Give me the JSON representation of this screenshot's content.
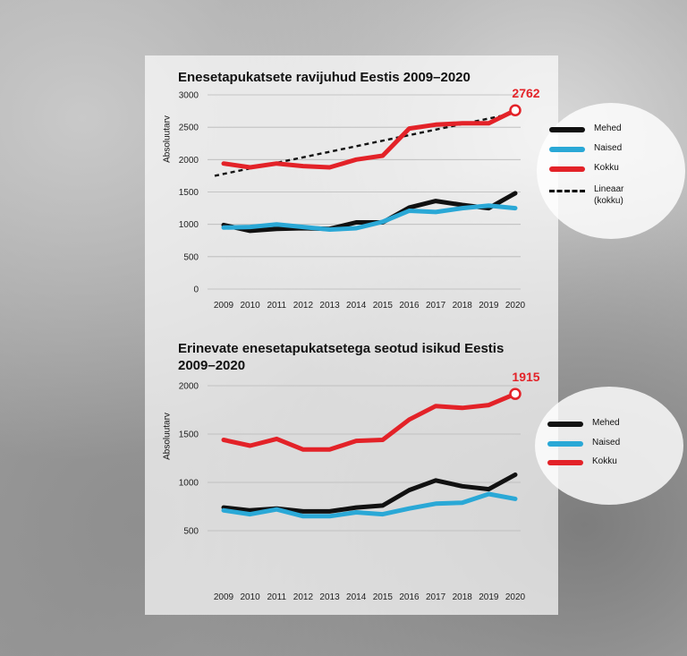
{
  "chart_data": [
    {
      "type": "line",
      "title": "Enesetapukatsete ravijuhud Eestis 2009–2020",
      "ylabel": "Absoluutarv",
      "ylim": [
        0,
        3000
      ],
      "yticks": [
        0,
        500,
        1000,
        1500,
        2000,
        2500,
        3000
      ],
      "categories": [
        "2009",
        "2010",
        "2011",
        "2012",
        "2013",
        "2014",
        "2015",
        "2016",
        "2017",
        "2018",
        "2019",
        "2020"
      ],
      "series": [
        {
          "name": "Mehed",
          "color": "#111111",
          "values": [
            990,
            900,
            930,
            940,
            930,
            1030,
            1030,
            1260,
            1360,
            1300,
            1250,
            1480
          ]
        },
        {
          "name": "Naised",
          "color": "#2aa8d6",
          "values": [
            950,
            960,
            1000,
            960,
            920,
            940,
            1040,
            1210,
            1190,
            1250,
            1290,
            1250
          ]
        },
        {
          "name": "Kokku",
          "color": "#e32228",
          "values": [
            1940,
            1880,
            1940,
            1900,
            1880,
            2000,
            2060,
            2480,
            2540,
            2560,
            2560,
            2762
          ]
        }
      ],
      "trendline": {
        "name": "Lineaar (kokku)",
        "color": "#111111",
        "start": 1750,
        "end": 2720
      },
      "end_label": "2762",
      "legend_position": "right",
      "grid": "horizontal"
    },
    {
      "type": "line",
      "title": "Erinevate enesetapukatsetega seotud isikud Eestis 2009–2020",
      "ylabel": "Absoluutarv",
      "ylim": [
        500,
        2000
      ],
      "yticks": [
        500,
        1000,
        1500,
        2000
      ],
      "categories": [
        "2009",
        "2010",
        "2011",
        "2012",
        "2013",
        "2014",
        "2015",
        "2016",
        "2017",
        "2018",
        "2019",
        "2020"
      ],
      "series": [
        {
          "name": "Mehed",
          "color": "#111111",
          "values": [
            740,
            710,
            730,
            700,
            700,
            740,
            760,
            920,
            1020,
            960,
            930,
            1080
          ]
        },
        {
          "name": "Naised",
          "color": "#2aa8d6",
          "values": [
            710,
            670,
            720,
            650,
            650,
            690,
            670,
            730,
            780,
            790,
            880,
            830
          ]
        },
        {
          "name": "Kokku",
          "color": "#e32228",
          "values": [
            1440,
            1380,
            1450,
            1340,
            1340,
            1430,
            1440,
            1650,
            1790,
            1770,
            1800,
            1915
          ]
        }
      ],
      "end_label": "1915",
      "legend_position": "right",
      "grid": "horizontal"
    }
  ],
  "legend1": {
    "mehed": "Mehed",
    "naised": "Naised",
    "kokku": "Kokku",
    "lineaar_line1": "Lineaar",
    "lineaar_line2": "(kokku)"
  },
  "legend2": {
    "mehed": "Mehed",
    "naised": "Naised",
    "kokku": "Kokku"
  }
}
